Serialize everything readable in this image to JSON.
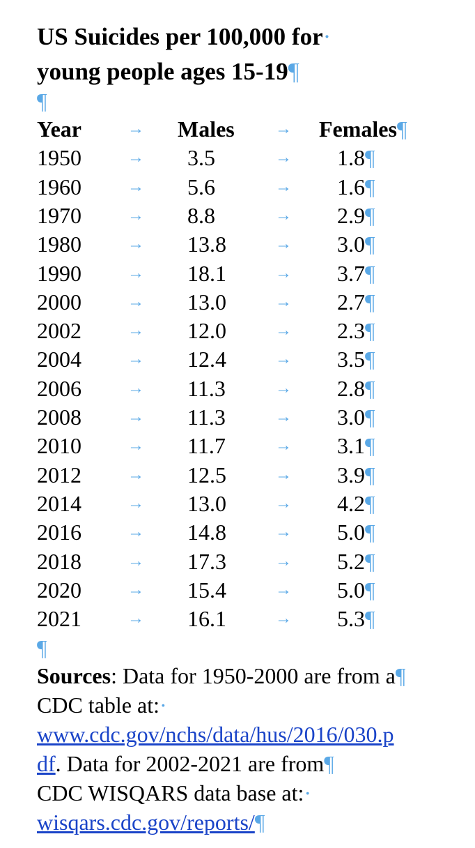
{
  "title": {
    "line1": "US Suicides per 100,000 for",
    "line2": "young people ages 15-19"
  },
  "marks": {
    "pilcrow": "¶",
    "arrow": "→",
    "dot": "·"
  },
  "table": {
    "headers": [
      "Year",
      "Males",
      "Females"
    ],
    "rows": [
      [
        "1950",
        "3.5",
        "1.8"
      ],
      [
        "1960",
        "5.6",
        "1.6"
      ],
      [
        "1970",
        "8.8",
        "2.9"
      ],
      [
        "1980",
        "13.8",
        "3.0"
      ],
      [
        "1990",
        "18.1",
        "3.7"
      ],
      [
        "2000",
        "13.0",
        "2.7"
      ],
      [
        "2002",
        "12.0",
        "2.3"
      ],
      [
        "2004",
        "12.4",
        "3.5"
      ],
      [
        "2006",
        "11.3",
        "2.8"
      ],
      [
        "2008",
        "11.3",
        "3.0"
      ],
      [
        "2010",
        "11.7",
        "3.1"
      ],
      [
        "2012",
        "12.5",
        "3.9"
      ],
      [
        "2014",
        "13.0",
        "4.2"
      ],
      [
        "2016",
        "14.8",
        "5.0"
      ],
      [
        "2018",
        "17.3",
        "5.2"
      ],
      [
        "2020",
        "15.4",
        "5.0"
      ],
      [
        "2021",
        "16.1",
        "5.3"
      ]
    ]
  },
  "sources": {
    "label": "Sources",
    "text1": ": Data for 1950-2000 are from a",
    "text2": "CDC table at:",
    "link1": "www.cdc.gov/nchs/data/hus/2016/030.pdf",
    "link1_part1": "www.cdc.gov/nchs/data/hus/2016/030.p",
    "link1_part2": "df",
    "text3": ". Data for 2002-2021 are from",
    "text4": "CDC WISQARS data base at:",
    "link2": "wisqars.cdc.gov/reports/"
  },
  "colors": {
    "formatting_marks": "#5aa8e6",
    "link": "#1a44c8"
  }
}
